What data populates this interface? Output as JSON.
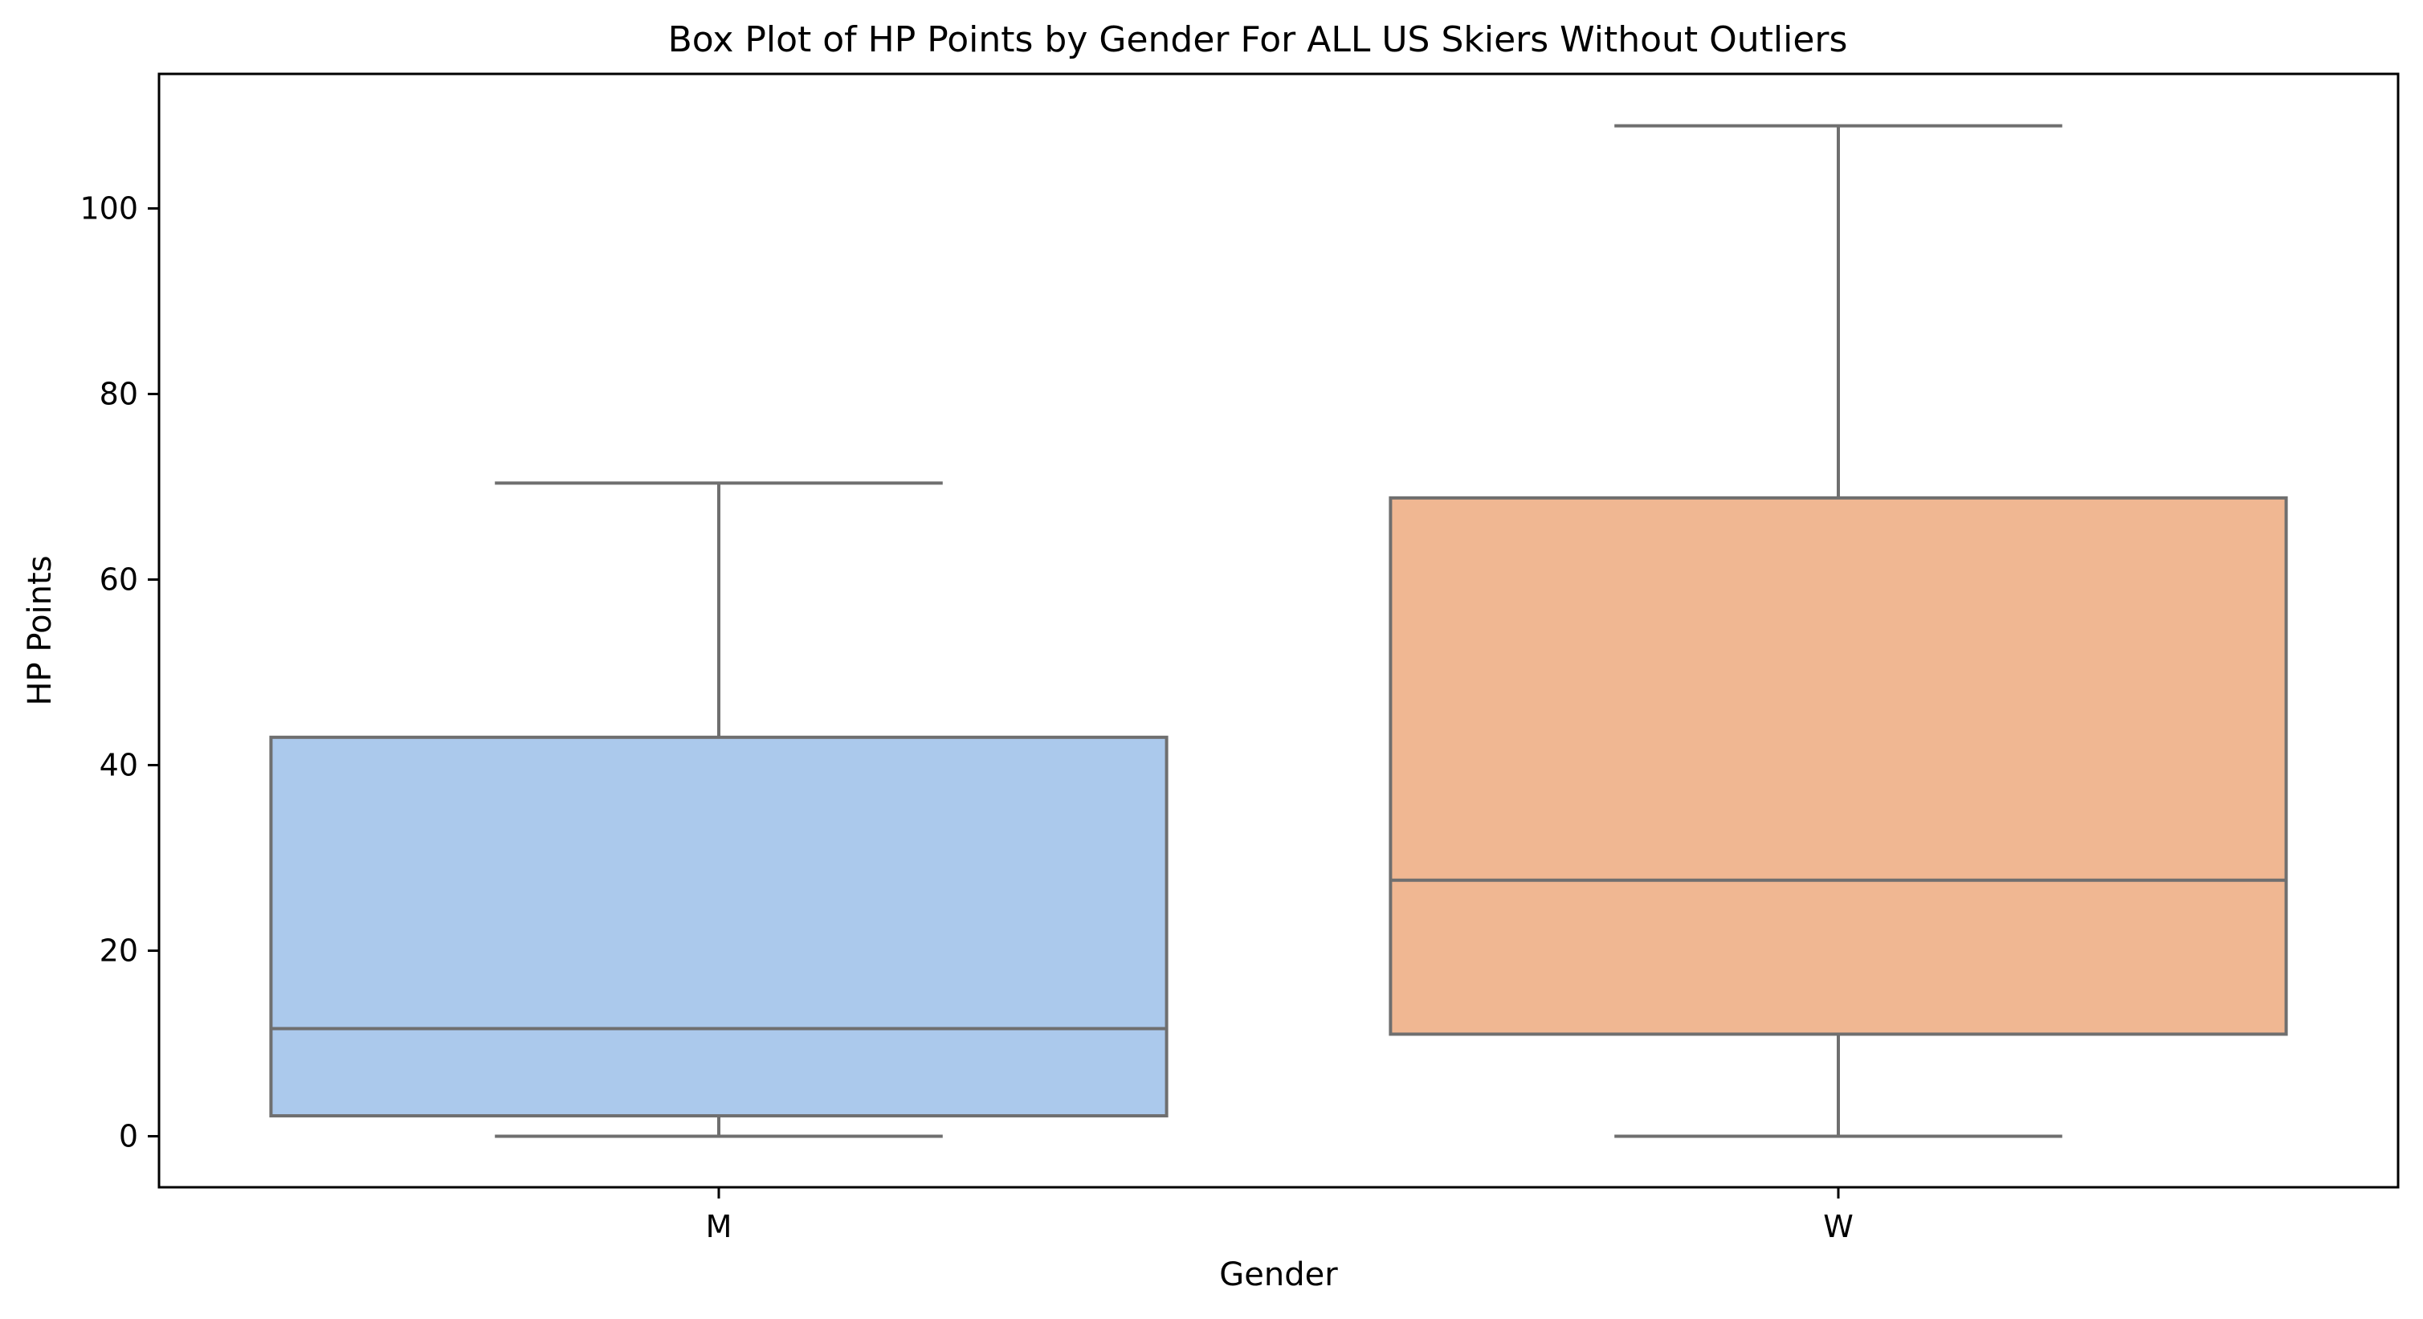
{
  "chart_data": {
    "type": "box",
    "title": "Box Plot of HP Points by Gender For ALL US Skiers Without Outliers",
    "xlabel": "Gender",
    "ylabel": "HP Points",
    "ylim": [
      -5.5,
      114.5
    ],
    "yticks": [
      0,
      20,
      40,
      60,
      80,
      100
    ],
    "grid": false,
    "categories": [
      "M",
      "W"
    ],
    "boxes": [
      {
        "category": "M",
        "whisker_low": 0,
        "q1": 2.2,
        "median": 11.6,
        "q3": 43.0,
        "whisker_high": 70.4,
        "color": "#abc9ec"
      },
      {
        "category": "W",
        "whisker_low": 0,
        "q1": 11.0,
        "median": 27.6,
        "q3": 68.8,
        "whisker_high": 108.9,
        "color": "#f0b792"
      }
    ]
  }
}
